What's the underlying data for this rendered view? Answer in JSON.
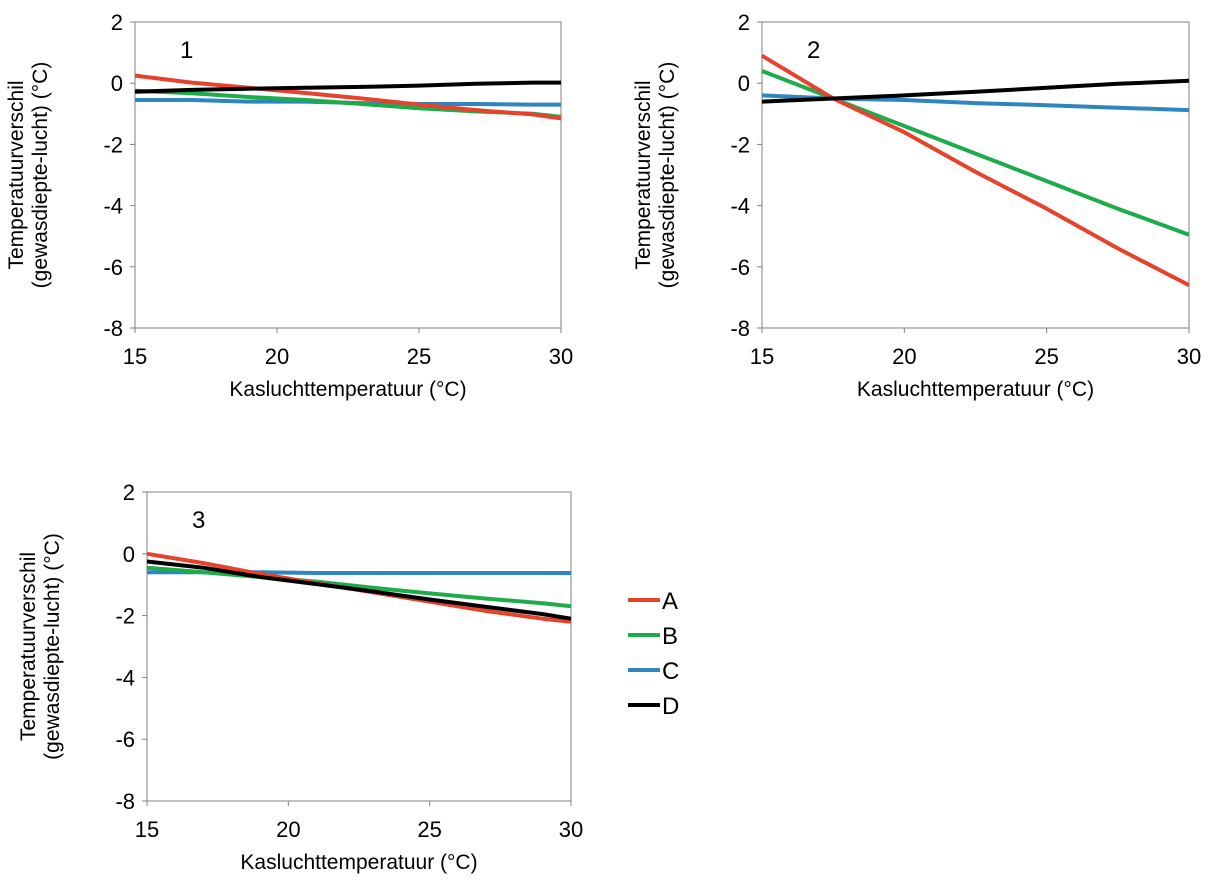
{
  "colors": {
    "A": "#e8412c",
    "B": "#1eac4b",
    "C": "#2e86c1",
    "D": "#000000"
  },
  "legend": [
    "A",
    "B",
    "C",
    "D"
  ],
  "chart_data": [
    {
      "type": "line",
      "panel_label": "1",
      "xlabel": "Kasluchttemperatuur (°C)",
      "ylabel": [
        "Temperatuurverschil",
        "(gewasdiepte-lucht) (°C)"
      ],
      "xlim": [
        15,
        30
      ],
      "ylim": [
        -8,
        2
      ],
      "xticks": [
        "15",
        "20",
        "25",
        "30"
      ],
      "yticks": [
        "2",
        "0",
        "-2",
        "-4",
        "-6",
        "-8"
      ],
      "x": [
        15,
        17,
        19,
        21,
        23,
        25,
        27,
        29,
        30
      ],
      "series": [
        {
          "name": "A",
          "values": [
            0.25,
            0.02,
            -0.15,
            -0.32,
            -0.5,
            -0.7,
            -0.88,
            -1.02,
            -1.15
          ]
        },
        {
          "name": "B",
          "values": [
            -0.25,
            -0.33,
            -0.45,
            -0.55,
            -0.68,
            -0.82,
            -0.92,
            -1.0,
            -1.1
          ]
        },
        {
          "name": "C",
          "values": [
            -0.55,
            -0.55,
            -0.6,
            -0.6,
            -0.65,
            -0.68,
            -0.68,
            -0.7,
            -0.7
          ]
        },
        {
          "name": "D",
          "values": [
            -0.28,
            -0.22,
            -0.18,
            -0.15,
            -0.12,
            -0.08,
            -0.02,
            0.02,
            0.02
          ]
        }
      ]
    },
    {
      "type": "line",
      "panel_label": "2",
      "xlabel": "Kasluchttemperatuur (°C)",
      "ylabel": [
        "Temperatuurverschil",
        "(gewasdiepte-lucht) (°C)"
      ],
      "xlim": [
        15,
        30
      ],
      "ylim": [
        -8,
        2
      ],
      "xticks": [
        "15",
        "20",
        "25",
        "30"
      ],
      "yticks": [
        "2",
        "0",
        "-2",
        "-4",
        "-6",
        "-8"
      ],
      "x": [
        15,
        17.5,
        20,
        22.5,
        25,
        27.5,
        30
      ],
      "series": [
        {
          "name": "A",
          "values": [
            0.9,
            -0.5,
            -1.6,
            -2.9,
            -4.1,
            -5.4,
            -6.6
          ]
        },
        {
          "name": "B",
          "values": [
            0.4,
            -0.5,
            -1.4,
            -2.3,
            -3.2,
            -4.1,
            -4.95
          ]
        },
        {
          "name": "C",
          "values": [
            -0.4,
            -0.5,
            -0.55,
            -0.65,
            -0.72,
            -0.8,
            -0.88
          ]
        },
        {
          "name": "D",
          "values": [
            -0.6,
            -0.5,
            -0.4,
            -0.28,
            -0.15,
            -0.02,
            0.08
          ]
        }
      ]
    },
    {
      "type": "line",
      "panel_label": "3",
      "xlabel": "Kasluchttemperatuur (°C)",
      "ylabel": [
        "Temperatuurverschil",
        "(gewasdiepte-lucht) (°C)"
      ],
      "xlim": [
        15,
        30
      ],
      "ylim": [
        -8,
        2
      ],
      "xticks": [
        "15",
        "20",
        "25",
        "30"
      ],
      "yticks": [
        "2",
        "0",
        "-2",
        "-4",
        "-6",
        "-8"
      ],
      "x": [
        15,
        17,
        19,
        21,
        23,
        25,
        27,
        29,
        30
      ],
      "series": [
        {
          "name": "A",
          "values": [
            0.0,
            -0.3,
            -0.65,
            -0.95,
            -1.25,
            -1.55,
            -1.85,
            -2.1,
            -2.2
          ]
        },
        {
          "name": "B",
          "values": [
            -0.45,
            -0.6,
            -0.75,
            -0.9,
            -1.1,
            -1.28,
            -1.45,
            -1.6,
            -1.7
          ]
        },
        {
          "name": "C",
          "values": [
            -0.6,
            -0.6,
            -0.6,
            -0.62,
            -0.62,
            -0.62,
            -0.62,
            -0.62,
            -0.62
          ]
        },
        {
          "name": "D",
          "values": [
            -0.25,
            -0.45,
            -0.75,
            -0.98,
            -1.22,
            -1.48,
            -1.72,
            -1.95,
            -2.1
          ]
        }
      ]
    }
  ]
}
